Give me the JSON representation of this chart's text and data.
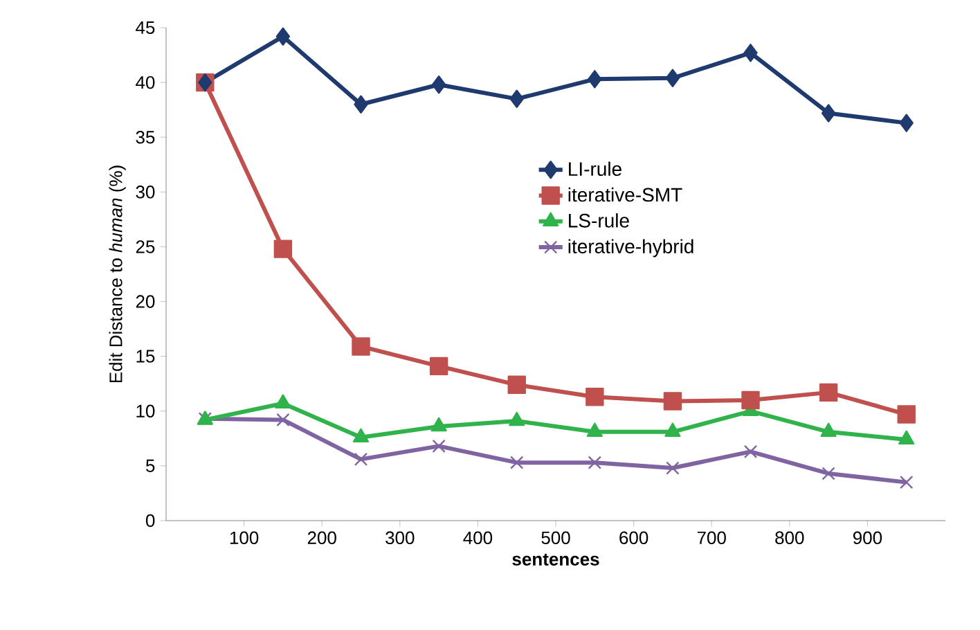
{
  "chart_data": {
    "type": "line",
    "xlabel": "sentences",
    "ylabel": "Edit Distance to *human* (%)",
    "x": [
      50,
      150,
      250,
      350,
      450,
      550,
      650,
      750,
      850,
      950
    ],
    "xlim": [
      0,
      1000
    ],
    "xticks": [
      100,
      200,
      300,
      400,
      500,
      600,
      700,
      800,
      900
    ],
    "ylim": [
      0,
      45
    ],
    "yticks": [
      0,
      5,
      10,
      15,
      20,
      25,
      30,
      35,
      40,
      45
    ],
    "grid": false,
    "legend": "right",
    "series": [
      {
        "name": "LI-rule",
        "color": "#1f3a6e",
        "marker": "diamond",
        "values": [
          40,
          44.2,
          38,
          39.8,
          38.5,
          40.3,
          40.4,
          42.7,
          37.2,
          36.3
        ]
      },
      {
        "name": "iterative-SMT",
        "color": "#c0504d",
        "marker": "square",
        "values": [
          40,
          24.8,
          15.9,
          14.1,
          12.4,
          11.3,
          10.9,
          11,
          11.7,
          9.7
        ]
      },
      {
        "name": "LS-rule",
        "color": "#2fb34a",
        "marker": "triangle",
        "values": [
          9.2,
          10.7,
          7.6,
          8.6,
          9.1,
          8.1,
          8.1,
          10,
          8.1,
          7.4
        ]
      },
      {
        "name": "iterative-hybrid",
        "color": "#8064a2",
        "marker": "cross",
        "values": [
          9.3,
          9.2,
          5.6,
          6.8,
          5.3,
          5.3,
          4.8,
          6.3,
          4.3,
          3.5
        ]
      }
    ]
  }
}
